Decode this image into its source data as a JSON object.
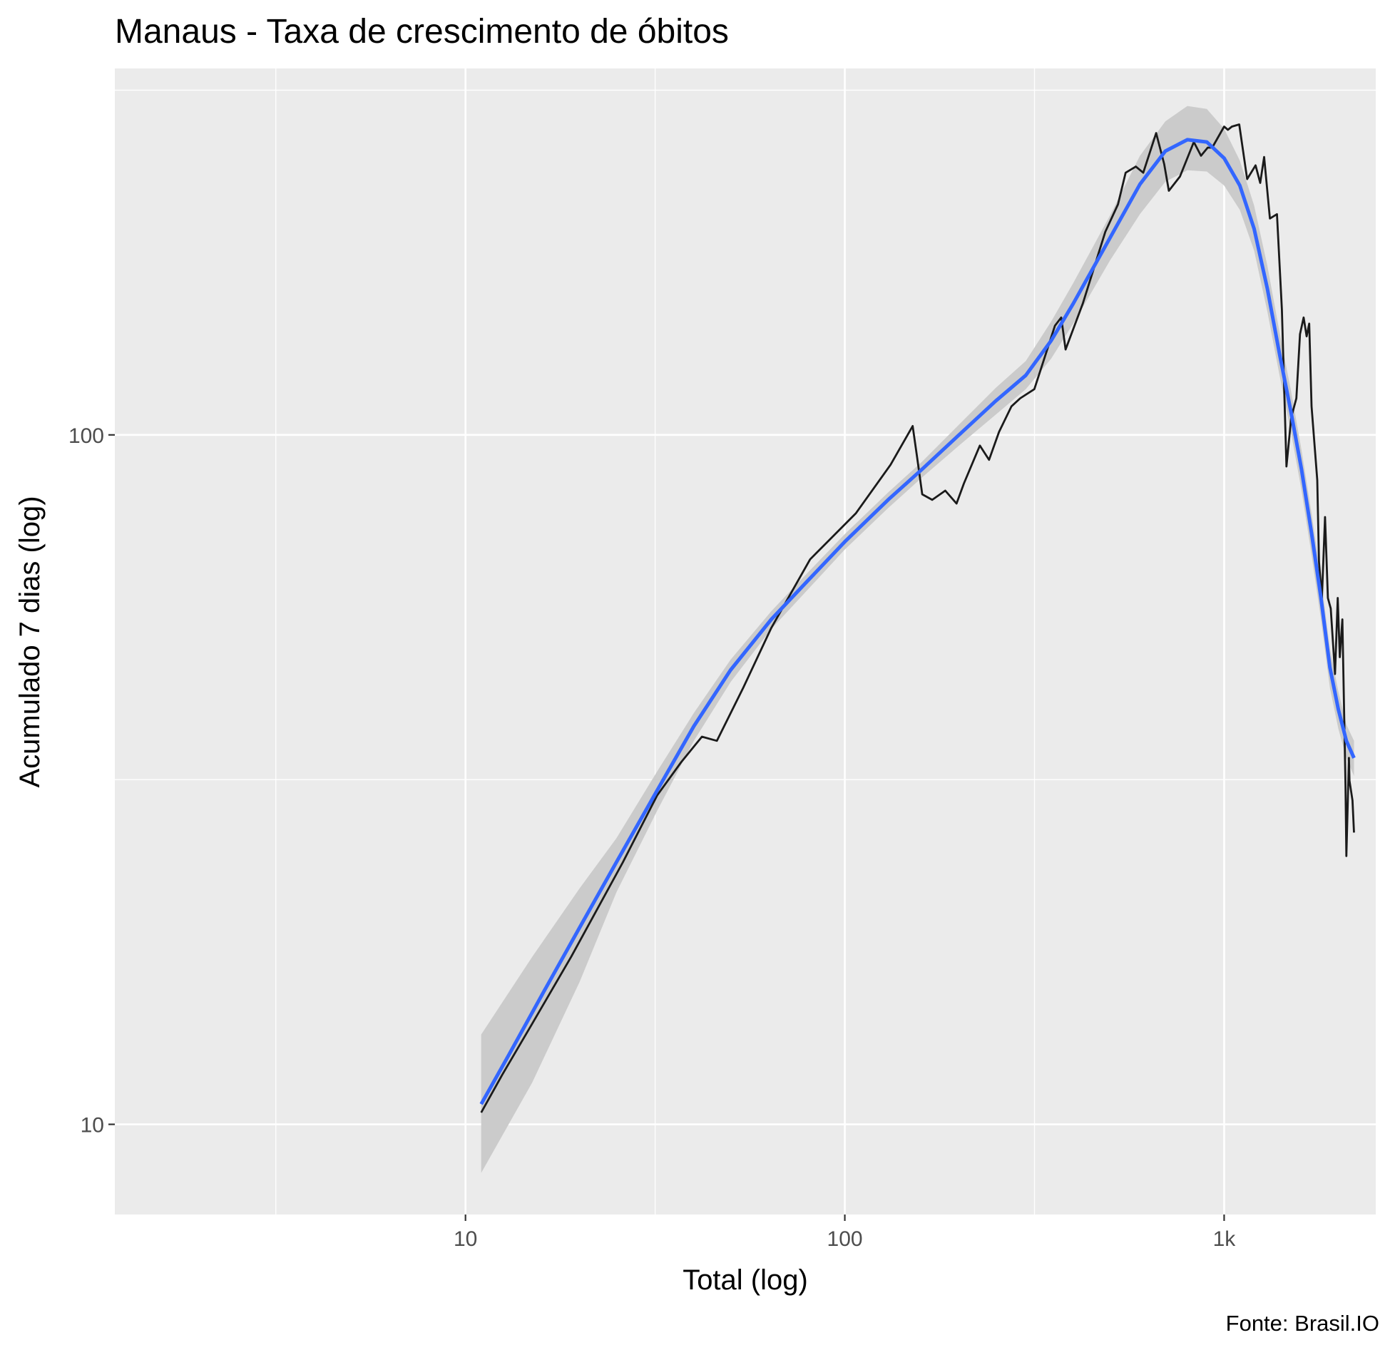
{
  "chart_data": {
    "type": "line",
    "title": "Manaus - Taxa de crescimento de óbitos",
    "xlabel": "Total (log)",
    "ylabel": "Acumulado 7 dias (log)",
    "caption": "Fonte: Brasil.IO",
    "x_scale": "log10",
    "y_scale": "log10",
    "xlim": [
      1.19,
      2510
    ],
    "ylim": [
      7.4,
      340
    ],
    "x_ticks": [
      {
        "value": 10,
        "label": "10"
      },
      {
        "value": 100,
        "label": "100"
      },
      {
        "value": 1000,
        "label": "1k"
      }
    ],
    "y_ticks": [
      {
        "value": 10,
        "label": "10"
      },
      {
        "value": 100,
        "label": "100"
      }
    ],
    "grid": true,
    "colors": {
      "panel": "#ebebeb",
      "grid": "#ffffff",
      "observed": "#1a1a1a",
      "smooth": "#3366ff",
      "ribbon": "#cbcbcb"
    },
    "series": [
      {
        "kind": "observed",
        "points": [
          [
            11,
            10.4
          ],
          [
            12.5,
            11.8
          ],
          [
            15,
            14
          ],
          [
            19,
            17.5
          ],
          [
            26,
            24
          ],
          [
            32,
            30
          ],
          [
            37,
            33.5
          ],
          [
            42,
            36.5
          ],
          [
            46,
            36
          ],
          [
            54,
            43
          ],
          [
            64,
            52.5
          ],
          [
            81,
            66
          ],
          [
            107,
            77
          ],
          [
            132,
            90.5
          ],
          [
            151,
            103
          ],
          [
            155,
            93
          ],
          [
            160,
            82
          ],
          [
            170,
            80.5
          ],
          [
            184,
            83
          ],
          [
            197,
            79.5
          ],
          [
            206,
            85
          ],
          [
            227,
            96.5
          ],
          [
            240,
            92
          ],
          [
            255,
            101
          ],
          [
            275,
            110
          ],
          [
            290,
            113
          ],
          [
            316,
            116.5
          ],
          [
            358,
            144
          ],
          [
            372,
            148
          ],
          [
            382,
            133
          ],
          [
            424,
            155
          ],
          [
            486,
            197
          ],
          [
            525,
            216
          ],
          [
            550,
            240
          ],
          [
            585,
            245
          ],
          [
            612,
            240
          ],
          [
            662,
            274
          ],
          [
            695,
            247
          ],
          [
            715,
            226
          ],
          [
            765,
            237
          ],
          [
            832,
            266
          ],
          [
            869,
            254
          ],
          [
            905,
            261
          ],
          [
            930,
            261
          ],
          [
            1000,
            280
          ],
          [
            1023,
            277
          ],
          [
            1048,
            280
          ],
          [
            1096,
            282
          ],
          [
            1150,
            235
          ],
          [
            1210,
            246
          ],
          [
            1245,
            232
          ],
          [
            1275,
            253
          ],
          [
            1320,
            206
          ],
          [
            1378,
            209
          ],
          [
            1420,
            152
          ],
          [
            1460,
            90
          ],
          [
            1503,
            106
          ],
          [
            1550,
            113
          ],
          [
            1585,
            140
          ],
          [
            1620,
            148
          ],
          [
            1650,
            139
          ],
          [
            1676,
            145
          ],
          [
            1700,
            110
          ],
          [
            1760,
            86
          ],
          [
            1778,
            65.5
          ],
          [
            1810,
            58
          ],
          [
            1845,
            76
          ],
          [
            1877,
            58
          ],
          [
            1910,
            56
          ],
          [
            1960,
            45
          ],
          [
            1993,
            58
          ],
          [
            2018,
            47.6
          ],
          [
            2050,
            54
          ],
          [
            2089,
            31
          ],
          [
            2100,
            24.5
          ],
          [
            2133,
            34
          ],
          [
            2140,
            31.5
          ],
          [
            2180,
            29.5
          ],
          [
            2200,
            26.5
          ]
        ]
      },
      {
        "kind": "smooth",
        "points": [
          [
            11,
            10.7
          ],
          [
            13,
            12.6
          ],
          [
            16,
            15.5
          ],
          [
            20,
            19.3
          ],
          [
            25,
            24
          ],
          [
            32,
            30.5
          ],
          [
            40,
            37.8
          ],
          [
            50,
            45.6
          ],
          [
            64,
            54
          ],
          [
            80,
            61.5
          ],
          [
            100,
            70
          ],
          [
            130,
            80.5
          ],
          [
            160,
            89.2
          ],
          [
            200,
            100
          ],
          [
            250,
            112
          ],
          [
            300,
            122
          ],
          [
            350,
            137
          ],
          [
            400,
            155
          ],
          [
            500,
            193
          ],
          [
            600,
            231
          ],
          [
            700,
            258
          ],
          [
            800,
            268
          ],
          [
            900,
            266
          ],
          [
            1000,
            252
          ],
          [
            1100,
            230
          ],
          [
            1200,
            199
          ],
          [
            1300,
            163
          ],
          [
            1400,
            131
          ],
          [
            1500,
            108
          ],
          [
            1600,
            89
          ],
          [
            1700,
            72
          ],
          [
            1800,
            58
          ],
          [
            1900,
            46
          ],
          [
            2000,
            40
          ],
          [
            2100,
            36
          ],
          [
            2200,
            34
          ]
        ]
      },
      {
        "kind": "ribbon",
        "upper": [
          [
            11,
            13.5
          ],
          [
            15,
            17.5
          ],
          [
            20,
            22
          ],
          [
            25,
            26
          ],
          [
            32,
            32.5
          ],
          [
            40,
            39.5
          ],
          [
            50,
            47.2
          ],
          [
            64,
            55.5
          ],
          [
            80,
            63.2
          ],
          [
            100,
            71.8
          ],
          [
            130,
            82.5
          ],
          [
            160,
            91.5
          ],
          [
            200,
            103.5
          ],
          [
            250,
            117
          ],
          [
            300,
            128
          ],
          [
            350,
            146
          ],
          [
            400,
            166
          ],
          [
            500,
            208
          ],
          [
            600,
            254
          ],
          [
            700,
            285
          ],
          [
            800,
            300
          ],
          [
            900,
            297
          ],
          [
            1000,
            278
          ],
          [
            1100,
            250
          ],
          [
            1200,
            215
          ],
          [
            1300,
            176
          ],
          [
            1400,
            141
          ],
          [
            1500,
            116
          ],
          [
            1600,
            95
          ],
          [
            1700,
            77
          ],
          [
            1800,
            62
          ],
          [
            1900,
            49
          ],
          [
            2000,
            42.5
          ],
          [
            2100,
            38
          ],
          [
            2200,
            36
          ]
        ],
        "lower": [
          [
            11,
            8.5
          ],
          [
            15,
            11.5
          ],
          [
            20,
            16.1
          ],
          [
            25,
            21.7
          ],
          [
            32,
            28.5
          ],
          [
            40,
            36
          ],
          [
            50,
            43.8
          ],
          [
            64,
            52.3
          ],
          [
            80,
            59.7
          ],
          [
            100,
            68.2
          ],
          [
            130,
            78.3
          ],
          [
            160,
            86.8
          ],
          [
            200,
            96.5
          ],
          [
            250,
            107
          ],
          [
            300,
            116.5
          ],
          [
            350,
            129
          ],
          [
            400,
            145
          ],
          [
            500,
            179
          ],
          [
            600,
            209
          ],
          [
            700,
            233
          ],
          [
            800,
            242
          ],
          [
            900,
            241
          ],
          [
            1000,
            230
          ],
          [
            1100,
            212
          ],
          [
            1200,
            185
          ],
          [
            1300,
            151
          ],
          [
            1400,
            122
          ],
          [
            1500,
            101
          ],
          [
            1600,
            83
          ],
          [
            1700,
            67
          ],
          [
            1800,
            54
          ],
          [
            1900,
            43
          ],
          [
            2000,
            37.5
          ],
          [
            2100,
            34
          ],
          [
            2200,
            32
          ]
        ]
      }
    ]
  }
}
